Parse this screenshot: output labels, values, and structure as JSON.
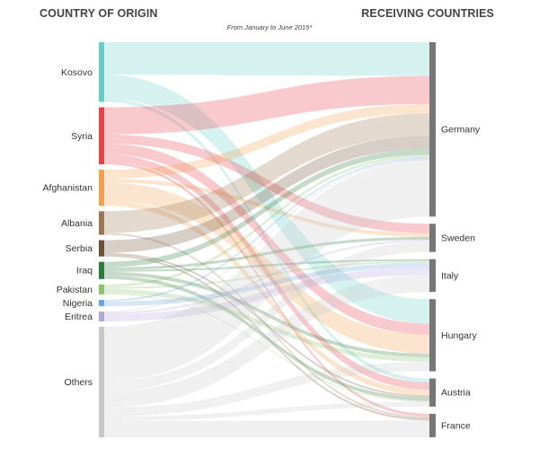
{
  "headers": {
    "left": "COUNTRY OF ORIGIN",
    "right": "RECEIVING COUNTRIES",
    "subtitle": "From January to June 2015*"
  },
  "colors": {
    "Kosovo": "#67cbc9",
    "Syria": "#e8424a",
    "Afghanistan": "#f0a050",
    "Albania": "#9a7654",
    "Serbia": "#6e4f38",
    "Iraq": "#2e7a3a",
    "Pakistan": "#8cc26a",
    "Nigeria": "#6aa6df",
    "Eritrea": "#b4a6dc",
    "Others": "#c8c8c8",
    "destination": "#777777"
  },
  "chart_data": {
    "type": "sankey",
    "sources": [
      "Kosovo",
      "Syria",
      "Afghanistan",
      "Albania",
      "Serbia",
      "Iraq",
      "Pakistan",
      "Nigeria",
      "Eritrea",
      "Others"
    ],
    "targets": [
      "Germany",
      "Sweden",
      "Italy",
      "Hungary",
      "Austria",
      "France"
    ],
    "links": [
      {
        "source": "Kosovo",
        "target": "Germany",
        "value": 36
      },
      {
        "source": "Kosovo",
        "target": "Hungary",
        "value": 26
      },
      {
        "source": "Kosovo",
        "target": "Austria",
        "value": 4
      },
      {
        "source": "Syria",
        "target": "Germany",
        "value": 30
      },
      {
        "source": "Syria",
        "target": "Sweden",
        "value": 10
      },
      {
        "source": "Syria",
        "target": "Hungary",
        "value": 12
      },
      {
        "source": "Syria",
        "target": "Austria",
        "value": 8
      },
      {
        "source": "Syria",
        "target": "France",
        "value": 3
      },
      {
        "source": "Afghanistan",
        "target": "Germany",
        "value": 10
      },
      {
        "source": "Afghanistan",
        "target": "Sweden",
        "value": 4
      },
      {
        "source": "Afghanistan",
        "target": "Hungary",
        "value": 20
      },
      {
        "source": "Afghanistan",
        "target": "Austria",
        "value": 6
      },
      {
        "source": "Albania",
        "target": "Germany",
        "value": 24
      },
      {
        "source": "Albania",
        "target": "France",
        "value": 2
      },
      {
        "source": "Serbia",
        "target": "Germany",
        "value": 14
      },
      {
        "source": "Serbia",
        "target": "Austria",
        "value": 2
      },
      {
        "source": "Serbia",
        "target": "France",
        "value": 2
      },
      {
        "source": "Iraq",
        "target": "Germany",
        "value": 6
      },
      {
        "source": "Iraq",
        "target": "Sweden",
        "value": 3
      },
      {
        "source": "Iraq",
        "target": "Italy",
        "value": 2
      },
      {
        "source": "Iraq",
        "target": "Hungary",
        "value": 4
      },
      {
        "source": "Iraq",
        "target": "Austria",
        "value": 4
      },
      {
        "source": "Pakistan",
        "target": "Germany",
        "value": 3
      },
      {
        "source": "Pakistan",
        "target": "Italy",
        "value": 2
      },
      {
        "source": "Pakistan",
        "target": "Hungary",
        "value": 5
      },
      {
        "source": "Pakistan",
        "target": "Austria",
        "value": 1
      },
      {
        "source": "Nigeria",
        "target": "Germany",
        "value": 2
      },
      {
        "source": "Nigeria",
        "target": "Italy",
        "value": 5
      },
      {
        "source": "Eritrea",
        "target": "Germany",
        "value": 1
      },
      {
        "source": "Eritrea",
        "target": "Sweden",
        "value": 2
      },
      {
        "source": "Eritrea",
        "target": "Italy",
        "value": 8
      },
      {
        "source": "Others",
        "target": "Germany",
        "value": 60
      },
      {
        "source": "Others",
        "target": "Sweden",
        "value": 11
      },
      {
        "source": "Others",
        "target": "Italy",
        "value": 18
      },
      {
        "source": "Others",
        "target": "Hungary",
        "value": 10
      },
      {
        "source": "Others",
        "target": "Austria",
        "value": 5
      },
      {
        "source": "Others",
        "target": "France",
        "value": 18
      }
    ]
  }
}
